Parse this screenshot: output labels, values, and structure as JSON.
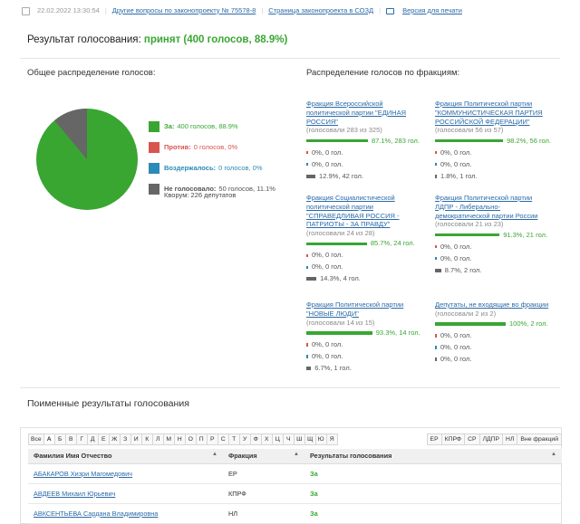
{
  "topbar": {
    "date": "22.02.2022 13:30:54",
    "other_questions": "Другие вопросы по законопроекту № 75578-8",
    "bill_page": "Страница законопроекта в СОЗД",
    "print_version": "Версия для печати"
  },
  "result": {
    "label": "Результат голосования:",
    "value": "принят (400 голосов, 88.9%)"
  },
  "overall": {
    "title": "Общее распределение голосов:",
    "legend": [
      {
        "label": "За:",
        "text": "400 голосов, 88.9%",
        "color": "#39a632",
        "fraction": 0.889
      },
      {
        "label": "Против:",
        "text": "0 голосов, 0%",
        "color": "#d9534f",
        "fraction": 0
      },
      {
        "label": "Воздержалось:",
        "text": "0 голосов, 0%",
        "color": "#2a8ab8",
        "fraction": 0
      },
      {
        "label": "Не голосовало:",
        "text": "50 голосов, 11.1%",
        "color": "#666666",
        "fraction": 0.111
      }
    ],
    "quorum": "Кворум: 226 депутатов"
  },
  "factions": {
    "title": "Распределение голосов по фракциям:",
    "items": [
      {
        "name": "Фракция Всероссийской политической партии \"ЕДИНАЯ РОССИЯ\"",
        "sub": "(голосовали 283 из 325)",
        "za": "87.1%, 283 гол.",
        "za_frac": 0.871,
        "pr": "0%, 0 гол.",
        "vz": "0%, 0 гол.",
        "ng": "12.9%, 42 гол.",
        "ng_frac": 0.129
      },
      {
        "name": "Фракция Политической партии \"КОММУНИСТИЧЕСКАЯ ПАРТИЯ РОССИЙСКОЙ ФЕДЕРАЦИИ\"",
        "sub": "(голосовали 56 из 57)",
        "za": "98.2%, 56 гол.",
        "za_frac": 0.982,
        "pr": "0%, 0 гол.",
        "vz": "0%, 0 гол.",
        "ng": "1.8%, 1 гол.",
        "ng_frac": 0.018
      },
      {
        "name": "Фракция Социалистической политической партии \"СПРАВЕДЛИВАЯ РОССИЯ - ПАТРИОТЫ - ЗА ПРАВДУ\"",
        "sub": "(голосовали 24 из 28)",
        "za": "85.7%, 24 гол.",
        "za_frac": 0.857,
        "pr": "0%, 0 гол.",
        "vz": "0%, 0 гол.",
        "ng": "14.3%, 4 гол.",
        "ng_frac": 0.143
      },
      {
        "name": "Фракция Политической партии ЛДПР - Либерально-демократической партии России",
        "sub": "(голосовали 21 из 23)",
        "za": "91.3%, 21 гол.",
        "za_frac": 0.913,
        "pr": "0%, 0 гол.",
        "vz": "0%, 0 гол.",
        "ng": "8.7%, 2 гол.",
        "ng_frac": 0.087
      },
      {
        "name": "Фракция Политической партии \"НОВЫЕ ЛЮДИ\"",
        "sub": "(голосовали 14 из 15)",
        "za": "93.3%, 14 гол.",
        "za_frac": 0.933,
        "pr": "0%, 0 гол.",
        "vz": "0%, 0 гол.",
        "ng": "6.7%, 1 гол.",
        "ng_frac": 0.067
      },
      {
        "name": "Депутаты, не входящие во фракции",
        "sub": "(голосовали 2 из 2)",
        "za": "100%, 2 гол.",
        "za_frac": 1.0,
        "pr": "0%, 0 гол.",
        "vz": "0%, 0 гол.",
        "ng": "0%, 0 гол.",
        "ng_frac": 0
      }
    ]
  },
  "named": {
    "title": "Поименные результаты голосования",
    "letters": [
      "Все",
      "А",
      "Б",
      "В",
      "Г",
      "Д",
      "Е",
      "Ж",
      "З",
      "И",
      "К",
      "Л",
      "М",
      "Н",
      "О",
      "П",
      "Р",
      "С",
      "Т",
      "У",
      "Ф",
      "Х",
      "Ц",
      "Ч",
      "Ш",
      "Щ",
      "Ю",
      "Я"
    ],
    "active_letter": "А",
    "faction_filters": [
      "ЕР",
      "КПРФ",
      "СР",
      "ЛДПР",
      "НЛ",
      "Вне фракций"
    ],
    "columns": [
      "Фамилия Имя Отчество",
      "Фракция",
      "Результаты голосования"
    ],
    "rows": [
      {
        "name": "АБАКАРОВ Хизри Магомедович",
        "faction": "ЕР",
        "result": "За"
      },
      {
        "name": "АВДЕЕВ Михаил Юрьевич",
        "faction": "КПРФ",
        "result": "За"
      },
      {
        "name": "АВКСЕНТЬЕВА Сардана Владимировна",
        "faction": "НЛ",
        "result": "За"
      }
    ]
  }
}
